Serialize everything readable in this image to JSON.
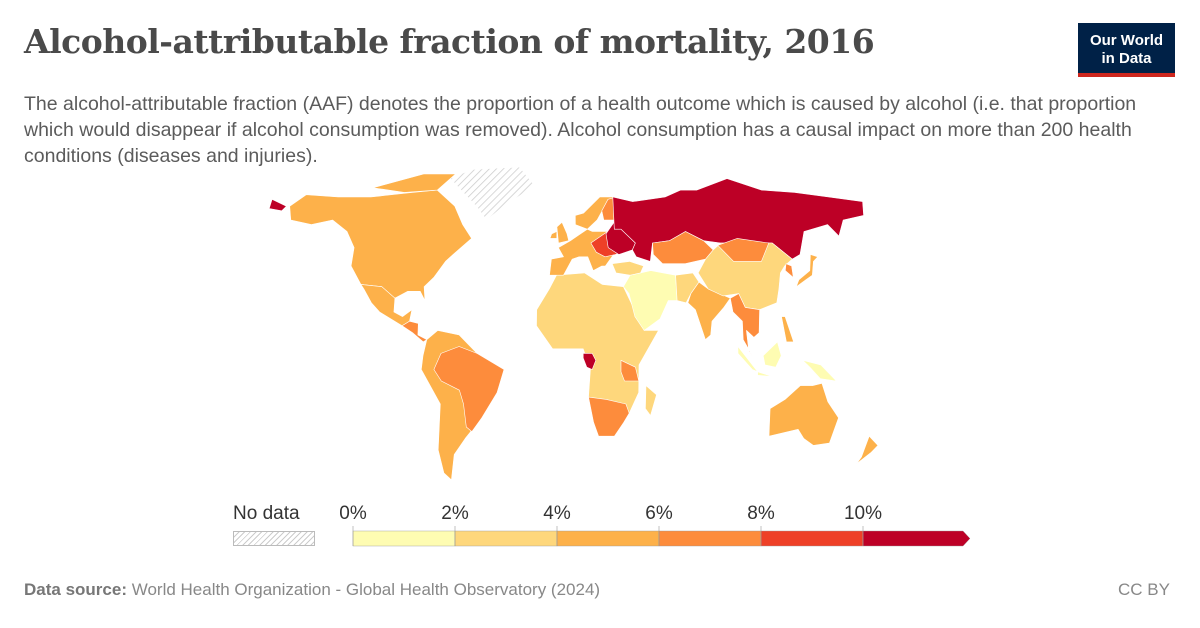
{
  "header": {
    "title": "Alcohol-attributable fraction of mortality, 2016",
    "subtitle": "The alcohol-attributable fraction (AAF) denotes the proportion of a health outcome which is caused by alcohol (i.e. that proportion which would disappear if alcohol consumption was removed). Alcohol consumption has a causal impact on more than 200 health conditions (diseases and injuries).",
    "logo_line1": "Our World",
    "logo_line2": "in Data"
  },
  "footer": {
    "source_label": "Data source:",
    "source_text": "World Health Organization - Global Health Observatory (2024)",
    "license": "CC BY"
  },
  "chart_data": {
    "type": "choropleth",
    "title": "Alcohol-attributable fraction of mortality, 2016",
    "legend": {
      "no_data_label": "No data",
      "tick_labels": [
        "0%",
        "2%",
        "4%",
        "6%",
        "8%",
        "10%"
      ],
      "bins": [
        {
          "range": "0-2%",
          "color": "#fefcb2"
        },
        {
          "range": "2-4%",
          "color": "#fed77c"
        },
        {
          "range": "4-6%",
          "color": "#fdb14a"
        },
        {
          "range": "6-8%",
          "color": "#fd8c3c"
        },
        {
          "range": "8-10%",
          "color": "#ee4027"
        },
        {
          "range": ">10%",
          "color": "#bd0026"
        }
      ],
      "no_data_color": "hatched"
    },
    "regions": [
      {
        "name": "North America (USA, Canada)",
        "bin": 2
      },
      {
        "name": "Mexico",
        "bin": 2
      },
      {
        "name": "Central America",
        "bin": 3
      },
      {
        "name": "Greenland",
        "bin": null
      },
      {
        "name": "South America",
        "bin": 2
      },
      {
        "name": "Brazil",
        "bin": 3
      },
      {
        "name": "North Africa & Sahel",
        "bin": 0
      },
      {
        "name": "Sub-Saharan Africa",
        "bin": 1
      },
      {
        "name": "Southern Africa",
        "bin": 3
      },
      {
        "name": "Gabon / Congo",
        "bin": 5
      },
      {
        "name": "Tanzania",
        "bin": 3
      },
      {
        "name": "Madagascar",
        "bin": 1
      },
      {
        "name": "Western Europe",
        "bin": 2
      },
      {
        "name": "Scandinavia",
        "bin": 2
      },
      {
        "name": "Finland",
        "bin": 3
      },
      {
        "name": "Central/Eastern Europe",
        "bin": 4
      },
      {
        "name": "Baltics, Belarus, Ukraine",
        "bin": 5
      },
      {
        "name": "Russia",
        "bin": 5
      },
      {
        "name": "Kazakhstan",
        "bin": 3
      },
      {
        "name": "Middle East",
        "bin": 0
      },
      {
        "name": "Turkey",
        "bin": 1
      },
      {
        "name": "Afghanistan / Pakistan",
        "bin": 1
      },
      {
        "name": "India",
        "bin": 2
      },
      {
        "name": "China",
        "bin": 1
      },
      {
        "name": "Mongolia",
        "bin": 3
      },
      {
        "name": "Southeast Asia",
        "bin": 3
      },
      {
        "name": "Korea",
        "bin": 3
      },
      {
        "name": "Japan",
        "bin": 2
      },
      {
        "name": "Indonesia / New Guinea",
        "bin": 0
      },
      {
        "name": "Philippines",
        "bin": 2
      },
      {
        "name": "Australia",
        "bin": 2
      },
      {
        "name": "New Zealand",
        "bin": 2
      }
    ]
  }
}
